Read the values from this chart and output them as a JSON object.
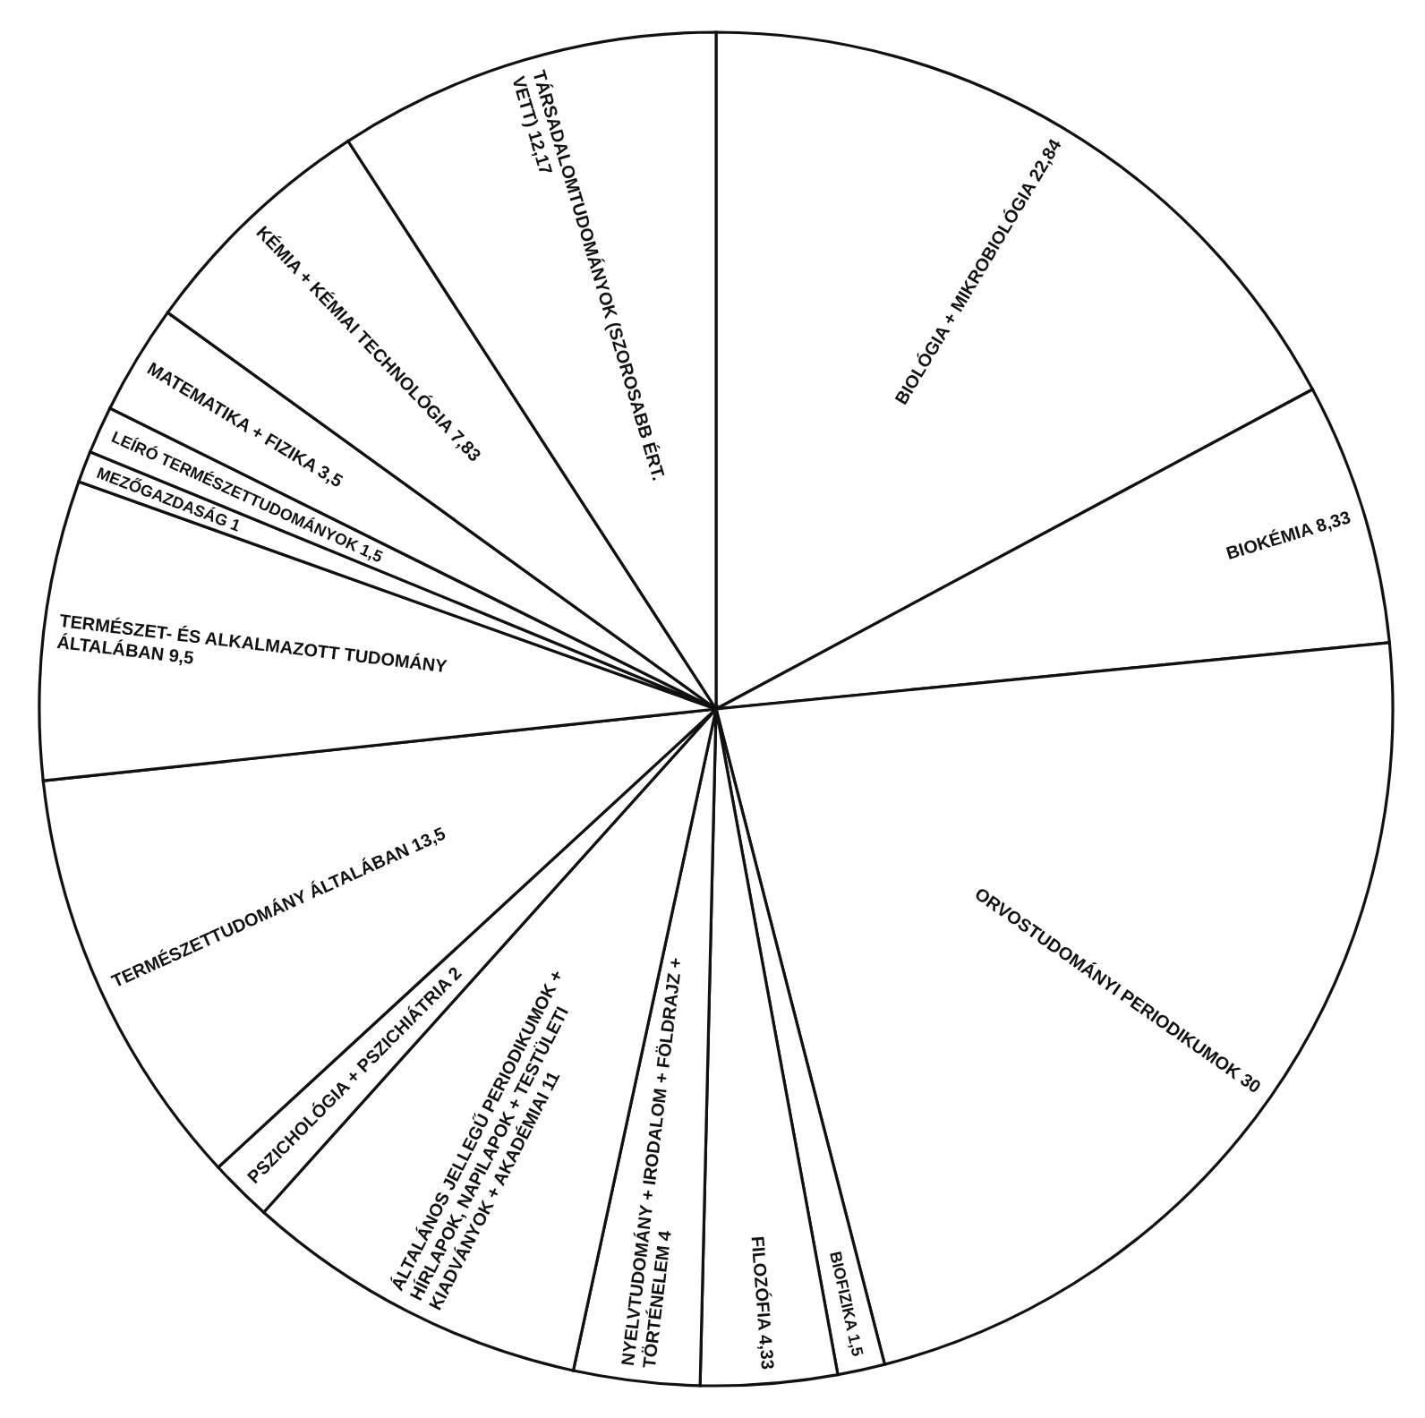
{
  "chart_data": {
    "type": "pie",
    "categories": [
      "BIOLÓGIA + MIKROBIOLÓGIA",
      "BIOKÉMIA",
      "ORVOSTUDOMÁNYI PERIODIKUMOK",
      "BIOFIZIKA",
      "FILOZÓFIA",
      "NYELVTUDOMÁNY + IRODALOM + FÖLDRAJZ + TÖRTÉNELEM",
      "ÁLTALÁNOS JELLEGŰ PERIODIKUMOK + HÍRLAPOK, NAPILAPOK + TESTÜLETI KIADVÁNYOK + AKADÉMIAI",
      "PSZICHOLÓGIA + PSZICHIÁTRIA",
      "TERMÉSZETTUDOMÁNY ÁLTALÁBAN",
      "TERMÉSZET- ÉS ALKALMAZOTT TUDOMÁNY ÁLTALÁBAN",
      "MEZŐGAZDASÁG",
      "LEÍRÓ TERMÉSZETTUDOMÁNYOK",
      "MATEMATIKA + FIZIKA",
      "KÉMIA + KÉMIAI TECHNOLÓGIA",
      "TÁRSADALOMTUDOMÁNYOK (SZOROSABB ÉRT. VETT)"
    ],
    "values": [
      22.84,
      8.33,
      30,
      1.5,
      4.33,
      4,
      11,
      2,
      13.5,
      9.5,
      1,
      1.5,
      3.5,
      7.83,
      12.17
    ],
    "value_labels": [
      "22,84",
      "8,33",
      "30",
      "1,5",
      "4,33",
      "4",
      "11",
      "2",
      "13,5",
      "9,5",
      "1",
      "1,5",
      "3,5",
      "7,83",
      "12,17"
    ],
    "colors": [
      "#ffffff",
      "#ffffff",
      "#ffffff",
      "#ffffff",
      "#ffffff",
      "#ffffff",
      "#ffffff",
      "#ffffff",
      "#ffffff",
      "#ffffff",
      "#ffffff",
      "#ffffff",
      "#ffffff",
      "#ffffff",
      "#ffffff"
    ]
  }
}
